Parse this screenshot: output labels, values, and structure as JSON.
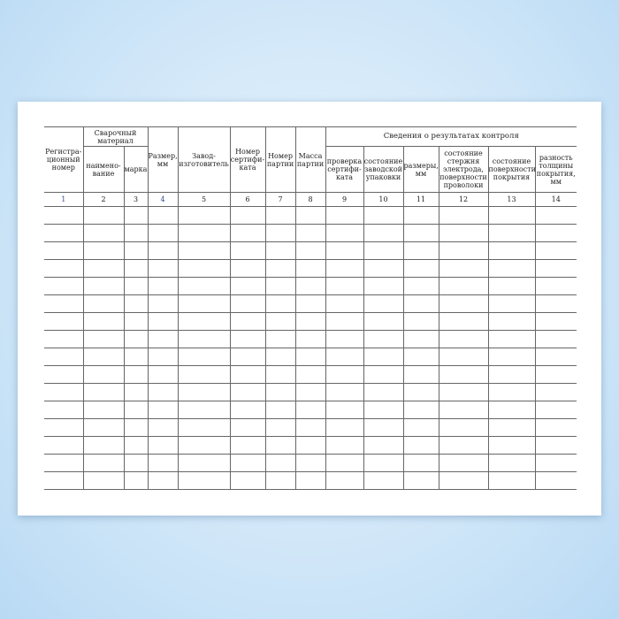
{
  "headers": {
    "reg_number": "Регистра-ционный номер",
    "welding_material": "Сварочный материал",
    "name": "наимено-вание",
    "brand": "марка",
    "size": "Размер, мм",
    "manufacturer": "Завод-изготовитель",
    "certificate_number": "Номер сертифи-ката",
    "batch_number": "Номер партии",
    "batch_mass": "Масса партии",
    "control_results": "Сведения о результатах контроля",
    "cert_check": "проверка сертифи-ката",
    "packaging_state": "состояние заводской упаковки",
    "dimensions": "размеры, мм",
    "rod_state": "состояние стержня электрода, поверхности проволоки",
    "coating_surface": "состояние поверхности покрытия",
    "coating_thickness_diff": "разность толщины покрытия, мм"
  },
  "column_numbers": [
    "1",
    "2",
    "3",
    "4",
    "5",
    "6",
    "7",
    "8",
    "9",
    "10",
    "11",
    "12",
    "13",
    "14"
  ],
  "empty_rows": 16,
  "colors": {
    "background": "#cfe6f8",
    "sheet": "#ffffff",
    "lines": "#666666",
    "number_accent": "#334a8a"
  }
}
